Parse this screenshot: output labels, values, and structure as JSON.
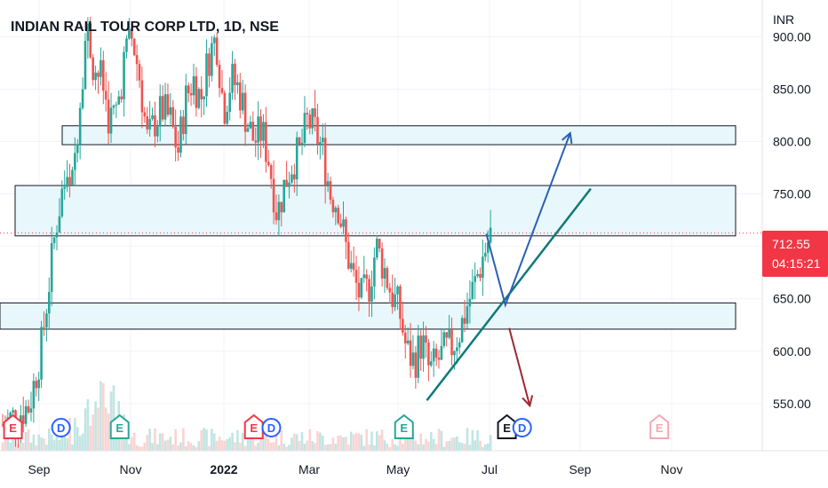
{
  "chart_data": {
    "type": "candlestick",
    "title": "INDIAN RAIL TOUR CORP LTD, 1D, NSE",
    "ylabel": "INR",
    "ylim": [
      505,
      935
    ],
    "y_ticks": [
      "900.00",
      "850.00",
      "800.00",
      "750.00",
      "700.00",
      "650.00",
      "600.00",
      "550.00"
    ],
    "y_tick_values": [
      900,
      850,
      800,
      750,
      700,
      650,
      600,
      550
    ],
    "x_ticks": [
      "Sep",
      "Nov",
      "2022",
      "Mar",
      "May",
      "Jul",
      "Sep",
      "Nov"
    ],
    "last_price": "712.55",
    "countdown": "04:15:21",
    "colors": {
      "up": "#26a69a",
      "down": "#ef5350",
      "zone_fill": "#e8f7fb",
      "trendline": "#0f7a7a",
      "arrow_up": "#2a5fb4",
      "arrow_down": "#9c2a33"
    },
    "zones": [
      {
        "top": 815,
        "bottom": 797
      },
      {
        "top": 758,
        "bottom": 710
      },
      {
        "top": 646,
        "bottom": 621
      }
    ],
    "trendline": {
      "from": {
        "t": 0.56,
        "price": 553
      },
      "to": {
        "t": 0.775,
        "price": 755
      }
    },
    "arrows": [
      {
        "color": "arrow_up",
        "points": [
          [
            0.638,
            712
          ],
          [
            0.663,
            644
          ],
          [
            0.748,
            808
          ]
        ]
      },
      {
        "color": "arrow_down",
        "points": [
          [
            0.668,
            622
          ],
          [
            0.695,
            548
          ]
        ]
      }
    ],
    "candles_note": "",
    "price_path": [
      [
        0.0,
        530
      ],
      [
        0.02,
        540
      ],
      [
        0.035,
        548
      ],
      [
        0.05,
        600
      ],
      [
        0.06,
        660
      ],
      [
        0.07,
        720
      ],
      [
        0.08,
        760
      ],
      [
        0.09,
        748
      ],
      [
        0.1,
        830
      ],
      [
        0.11,
        910
      ],
      [
        0.12,
        870
      ],
      [
        0.13,
        860
      ],
      [
        0.14,
        820
      ],
      [
        0.15,
        830
      ],
      [
        0.16,
        880
      ],
      [
        0.17,
        900
      ],
      [
        0.18,
        860
      ],
      [
        0.19,
        800
      ],
      [
        0.2,
        820
      ],
      [
        0.21,
        830
      ],
      [
        0.22,
        820
      ],
      [
        0.23,
        790
      ],
      [
        0.24,
        840
      ],
      [
        0.25,
        860
      ],
      [
        0.26,
        840
      ],
      [
        0.27,
        880
      ],
      [
        0.28,
        900
      ],
      [
        0.29,
        830
      ],
      [
        0.3,
        860
      ],
      [
        0.31,
        850
      ],
      [
        0.32,
        820
      ],
      [
        0.33,
        800
      ],
      [
        0.34,
        810
      ],
      [
        0.35,
        780
      ],
      [
        0.36,
        730
      ],
      [
        0.37,
        760
      ],
      [
        0.38,
        780
      ],
      [
        0.39,
        790
      ],
      [
        0.4,
        820
      ],
      [
        0.41,
        810
      ],
      [
        0.42,
        790
      ],
      [
        0.43,
        750
      ],
      [
        0.44,
        740
      ],
      [
        0.45,
        700
      ],
      [
        0.46,
        670
      ],
      [
        0.47,
        650
      ],
      [
        0.48,
        660
      ],
      [
        0.49,
        700
      ],
      [
        0.5,
        680
      ],
      [
        0.51,
        655
      ],
      [
        0.52,
        640
      ],
      [
        0.53,
        600
      ],
      [
        0.54,
        590
      ],
      [
        0.55,
        610
      ],
      [
        0.56,
        580
      ],
      [
        0.57,
        590
      ],
      [
        0.58,
        600
      ],
      [
        0.59,
        605
      ],
      [
        0.6,
        620
      ],
      [
        0.61,
        645
      ],
      [
        0.62,
        665
      ],
      [
        0.63,
        690
      ],
      [
        0.64,
        712
      ]
    ],
    "volume_bars_note": "",
    "event_markers": [
      {
        "t": 0.017,
        "letter": "E",
        "style": "red-shield"
      },
      {
        "t": 0.08,
        "letter": "D",
        "style": "blue-circle"
      },
      {
        "t": 0.157,
        "letter": "E",
        "style": "green-shield"
      },
      {
        "t": 0.333,
        "letter": "E",
        "style": "red-shield"
      },
      {
        "t": 0.356,
        "letter": "D",
        "style": "blue-circle"
      },
      {
        "t": 0.53,
        "letter": "E",
        "style": "green-shield"
      },
      {
        "t": 0.665,
        "letter": "E",
        "style": "dark-shield"
      },
      {
        "t": 0.685,
        "letter": "D",
        "style": "blue-circle"
      },
      {
        "t": 0.865,
        "letter": "E",
        "style": "pink-shield"
      }
    ]
  }
}
